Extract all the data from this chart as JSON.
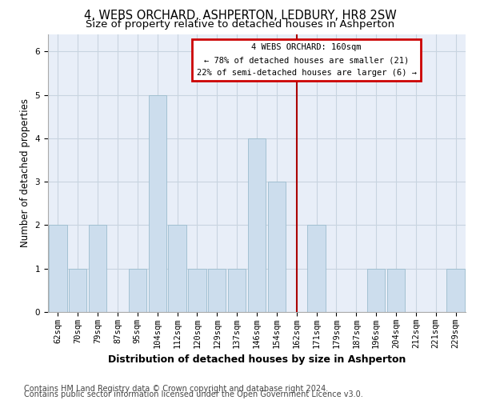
{
  "title": "4, WEBS ORCHARD, ASHPERTON, LEDBURY, HR8 2SW",
  "subtitle": "Size of property relative to detached houses in Ashperton",
  "xlabel": "Distribution of detached houses by size in Ashperton",
  "ylabel": "Number of detached properties",
  "categories": [
    "62sqm",
    "70sqm",
    "79sqm",
    "87sqm",
    "95sqm",
    "104sqm",
    "112sqm",
    "120sqm",
    "129sqm",
    "137sqm",
    "146sqm",
    "154sqm",
    "162sqm",
    "171sqm",
    "179sqm",
    "187sqm",
    "196sqm",
    "204sqm",
    "212sqm",
    "221sqm",
    "229sqm"
  ],
  "values": [
    2,
    1,
    2,
    0,
    1,
    5,
    2,
    1,
    1,
    1,
    4,
    3,
    0,
    2,
    0,
    0,
    1,
    1,
    0,
    0,
    1
  ],
  "bar_color": "#ccdded",
  "bar_edgecolor": "#9bbcce",
  "grid_color": "#c8d4e0",
  "vline_x": 12,
  "vline_color": "#aa0000",
  "annotation_text": "4 WEBS ORCHARD: 160sqm\n← 78% of detached houses are smaller (21)\n22% of semi-detached houses are larger (6) →",
  "annotation_box_color": "#cc0000",
  "ylim": [
    0,
    6.4
  ],
  "yticks": [
    0,
    1,
    2,
    3,
    4,
    5,
    6
  ],
  "footer1": "Contains HM Land Registry data © Crown copyright and database right 2024.",
  "footer2": "Contains public sector information licensed under the Open Government Licence v3.0.",
  "bg_color": "#e8eef8",
  "title_fontsize": 10.5,
  "subtitle_fontsize": 9.5,
  "axis_label_fontsize": 8.5,
  "tick_fontsize": 7.5,
  "footer_fontsize": 7.0
}
